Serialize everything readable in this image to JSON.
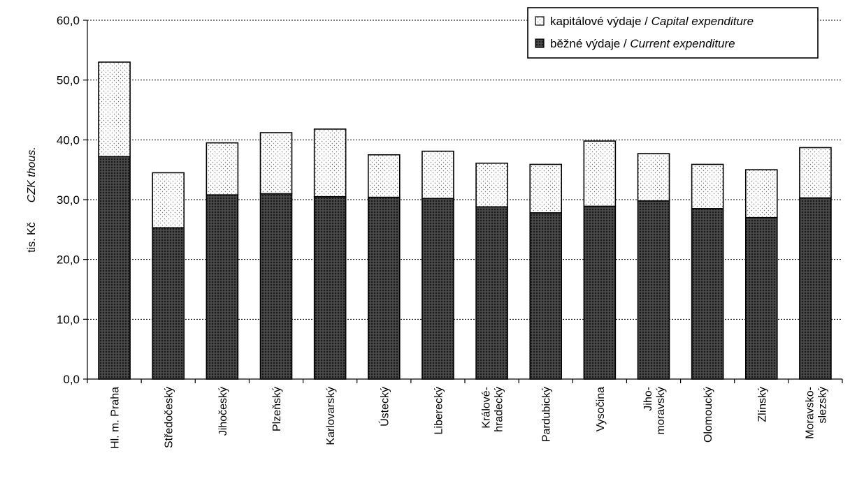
{
  "chart_data": {
    "type": "bar",
    "stacked": true,
    "categories": [
      [
        "Hl. m. Praha"
      ],
      [
        "Středočeský"
      ],
      [
        "Jihočeský"
      ],
      [
        "Plzeňský"
      ],
      [
        "Karlovarský"
      ],
      [
        "Ústecký"
      ],
      [
        "Liberecký"
      ],
      [
        "Králové-",
        "hradecký"
      ],
      [
        "Pardubický"
      ],
      [
        "Vysočina"
      ],
      [
        "Jiho-",
        "moravský"
      ],
      [
        "Olomoucký"
      ],
      [
        "Zlínský"
      ],
      [
        "Moravsko-",
        "slezský"
      ]
    ],
    "series": [
      {
        "name_cz": "běžné výdaje / ",
        "name_en": "Current expenditure",
        "pattern": "dark-crosshatch",
        "color": "#3a3a3a",
        "values": [
          37.2,
          25.3,
          30.8,
          31.0,
          30.5,
          30.4,
          30.2,
          28.8,
          27.8,
          28.9,
          29.8,
          28.5,
          27.0,
          30.3
        ]
      },
      {
        "name_cz": "kapitálové výdaje / ",
        "name_en": "Capital expenditure",
        "pattern": "light-dots",
        "color": "#f2f2f2",
        "values": [
          15.8,
          9.2,
          8.7,
          10.2,
          11.3,
          7.1,
          7.9,
          7.3,
          8.1,
          10.9,
          7.9,
          7.4,
          8.0,
          8.4
        ]
      }
    ],
    "ylabel_cz": "tis. Kč",
    "ylabel_en": "CZK thous.",
    "ylim": [
      0,
      60
    ],
    "yticks": [
      0,
      10,
      20,
      30,
      40,
      50,
      60
    ],
    "ytick_labels": [
      "0,0",
      "10,0",
      "20,0",
      "30,0",
      "40,0",
      "50,0",
      "60,0"
    ],
    "grid": true,
    "legend_position": "top-right"
  }
}
